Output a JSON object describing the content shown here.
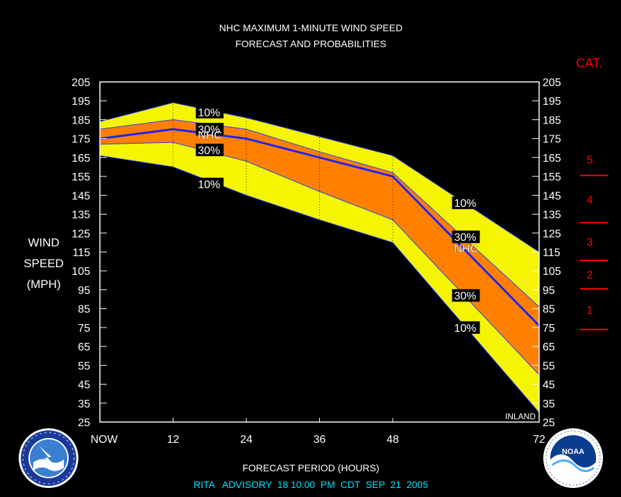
{
  "chart_data": {
    "type": "area",
    "title": "NHC MAXIMUM 1-MINUTE WIND SPEED",
    "subtitle": "FORECAST AND PROBABILITIES",
    "ylabel": [
      "WIND",
      "SPEED",
      "(MPH)"
    ],
    "xlabel": "FORECAST PERIOD (HOURS)",
    "x_ticks": [
      "NOW",
      "12",
      "24",
      "36",
      "48",
      "72"
    ],
    "x_tick_values": [
      0,
      12,
      24,
      36,
      48,
      72
    ],
    "xlim": [
      0,
      72
    ],
    "ylim": [
      25,
      205
    ],
    "y_ticks": [
      205,
      195,
      185,
      175,
      165,
      155,
      145,
      135,
      125,
      115,
      105,
      95,
      85,
      75,
      65,
      55,
      45,
      35,
      25
    ],
    "x": [
      0,
      12,
      24,
      36,
      48,
      72
    ],
    "series": [
      {
        "name": "10%",
        "role": "upper-10",
        "values": [
          184,
          194,
          186,
          176,
          166,
          115
        ]
      },
      {
        "name": "30%",
        "role": "upper-30",
        "values": [
          180,
          185,
          180,
          168,
          157,
          86
        ]
      },
      {
        "name": "NHC",
        "role": "forecast",
        "values": [
          175,
          180,
          175,
          165,
          155,
          76
        ]
      },
      {
        "name": "30%",
        "role": "lower-30",
        "values": [
          172,
          173,
          163,
          147,
          132,
          50
        ]
      },
      {
        "name": "10%",
        "role": "lower-10",
        "values": [
          166,
          160,
          145,
          132,
          120,
          30
        ]
      }
    ],
    "band_labels": [
      {
        "text": "10%",
        "x": 18,
        "y": 189
      },
      {
        "text": "30%",
        "x": 18,
        "y": 180
      },
      {
        "text": "NHC",
        "x": 18,
        "y": 177
      },
      {
        "text": "30%",
        "x": 18,
        "y": 169
      },
      {
        "text": "10%",
        "x": 18,
        "y": 151
      },
      {
        "text": "10%",
        "x": 60,
        "y": 141
      },
      {
        "text": "30%",
        "x": 60,
        "y": 123
      },
      {
        "text": "NHC",
        "x": 60,
        "y": 117
      },
      {
        "text": "30%",
        "x": 60,
        "y": 92
      },
      {
        "text": "10%",
        "x": 60,
        "y": 75
      }
    ],
    "annotation": "INLAND",
    "category_title": "CAT.",
    "categories": [
      {
        "label": "5",
        "low": 156,
        "high": 205
      },
      {
        "label": "4",
        "low": 131,
        "high": 155
      },
      {
        "label": "3",
        "low": 111,
        "high": 130
      },
      {
        "label": "2",
        "low": 96,
        "high": 110
      },
      {
        "label": "1",
        "low": 74,
        "high": 95
      }
    ],
    "category_boundaries": [
      155.5,
      130.5,
      110.5,
      95.5,
      74
    ],
    "colors": {
      "background": "#000000",
      "outer_band": "#f5f500",
      "inner_band": "#ff8000",
      "forecast_line": "#2020ff",
      "category": "#ff0000",
      "footer": "#00e5ff",
      "text": "#ffffff"
    },
    "footer": "RITA   ADVISORY  18 10:00  PM  CDT  SEP  21  2005",
    "logos": [
      "national-weather-service-logo",
      "noaa-logo"
    ]
  }
}
